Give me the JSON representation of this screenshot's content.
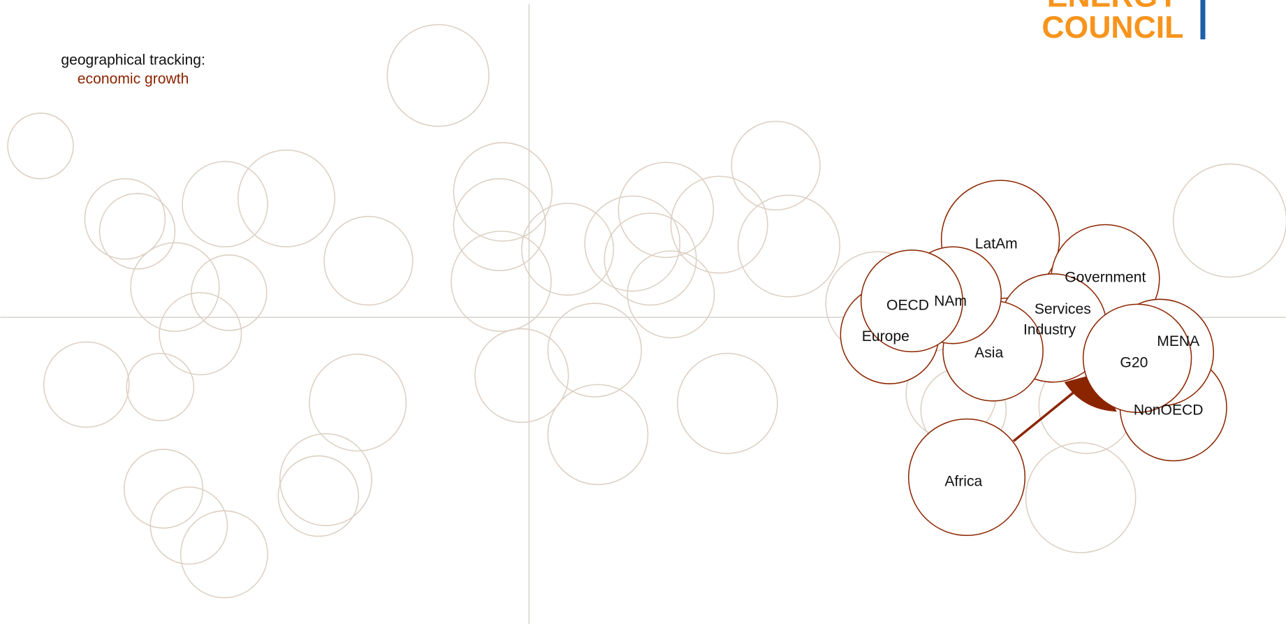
{
  "header": {
    "logo_top": "ENERGY",
    "logo_bottom": "COUNCIL"
  },
  "caption": {
    "title": "geographical tracking:",
    "subtitle": "economic growth"
  },
  "nodes": [
    {
      "label": "Africa"
    },
    {
      "label": "LatAm"
    },
    {
      "label": "Government"
    },
    {
      "label": "Industry"
    },
    {
      "label": "Asia"
    },
    {
      "label": "Europe"
    },
    {
      "label": "NAm"
    },
    {
      "label": "OECD"
    },
    {
      "label": "Services"
    },
    {
      "label": "NonOECD"
    },
    {
      "label": "MENA"
    },
    {
      "label": "G20"
    }
  ]
}
